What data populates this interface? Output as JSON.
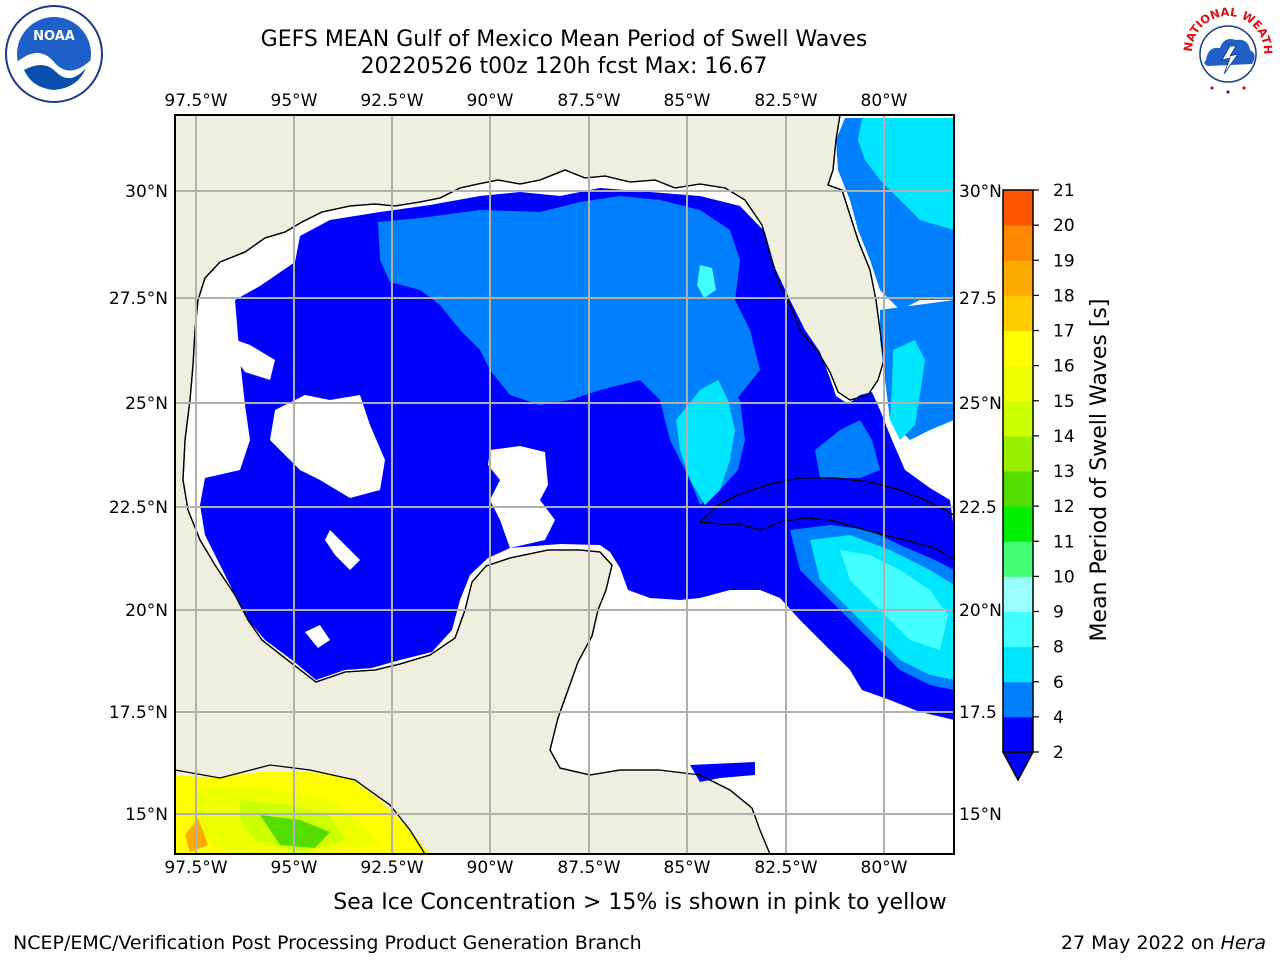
{
  "header": {
    "title_line1": "GEFS MEAN Gulf of Mexico Mean Period of Swell Waves",
    "title_line2": "20220526 t00z 120h fcst   Max: 16.67"
  },
  "logos": {
    "noaa_text": "NOAA",
    "nws_text": "NATIONAL WEATHER SERVICE"
  },
  "map": {
    "lon_labels": [
      "97.5°W",
      "95°W",
      "92.5°W",
      "90°W",
      "87.5°W",
      "85°W",
      "82.5°W",
      "80°W"
    ],
    "lat_labels_left": [
      "30°N",
      "27.5°N",
      "25°N",
      "22.5°N",
      "20°N",
      "17.5°N",
      "15°N"
    ],
    "lat_labels_right": [
      "30°N",
      "27.5",
      "25°N",
      "22.5",
      "20°N",
      "17.5",
      "15°N"
    ],
    "land_color": "#efefdf",
    "grid_color": "#b0b0b0"
  },
  "colorbar": {
    "label": "Mean Period of Swell Waves [s]",
    "ticks": [
      "2",
      "4",
      "6",
      "8",
      "9",
      "10",
      "11",
      "12",
      "13",
      "14",
      "15",
      "16",
      "17",
      "18",
      "19",
      "20",
      "21"
    ],
    "colors": [
      "#0000ff",
      "#0080ff",
      "#00e6ff",
      "#44ffff",
      "#99ffff",
      "#44ff77",
      "#00ee00",
      "#55dd00",
      "#99ee00",
      "#ccff00",
      "#eeff00",
      "#ffff00",
      "#ffcc00",
      "#ffaa00",
      "#ff8800",
      "#ff5500",
      "#ff2200",
      "#ff0000"
    ]
  },
  "caption": "Sea Ice Concentration > 15% is shown in pink to yellow",
  "footer": {
    "left": "NCEP/EMC/Verification Post Processing Product Generation Branch",
    "right_date": "27 May 2022 on ",
    "right_host": "Hera"
  }
}
